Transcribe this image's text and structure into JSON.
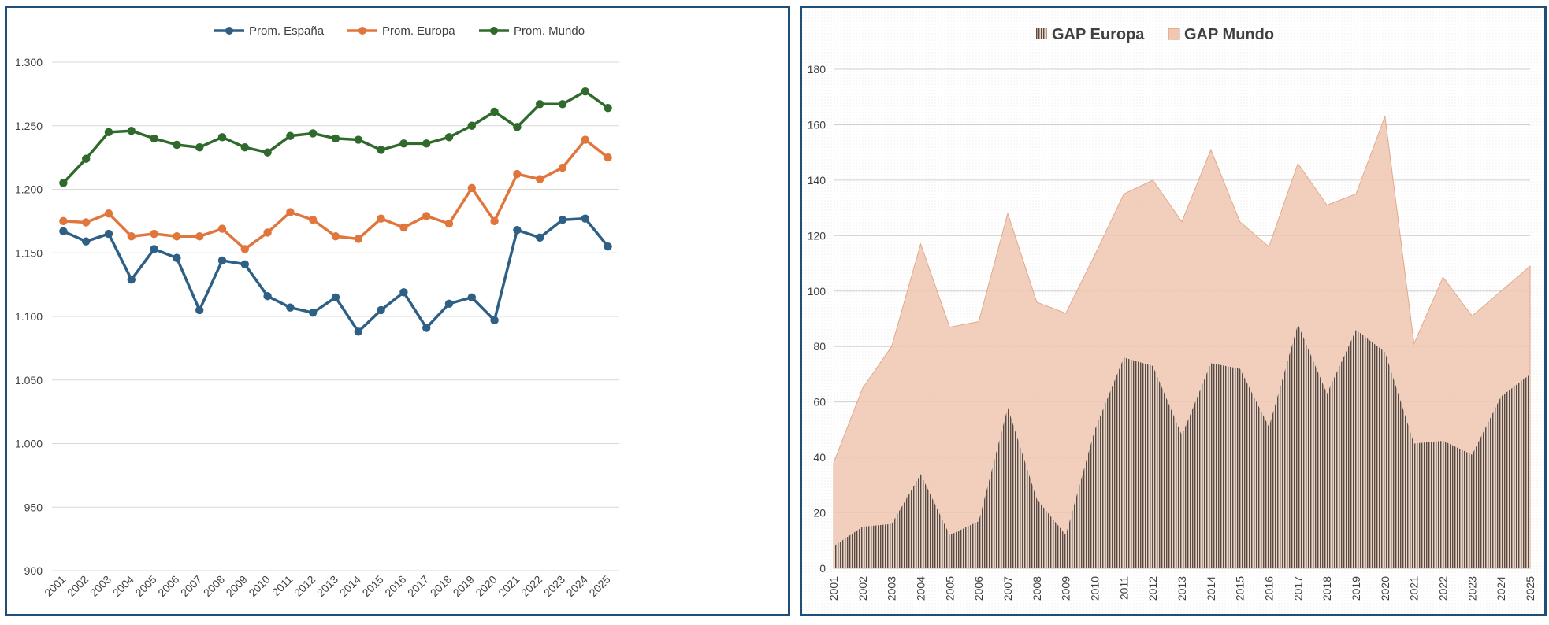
{
  "chart_data": [
    {
      "type": "line",
      "title": "",
      "xlabel": "",
      "ylabel": "",
      "categories": [
        "2001",
        "2002",
        "2003",
        "2004",
        "2005",
        "2006",
        "2007",
        "2008",
        "2009",
        "2010",
        "2011",
        "2012",
        "2013",
        "2014",
        "2015",
        "2016",
        "2017",
        "2018",
        "2019",
        "2020",
        "2021",
        "2022",
        "2023",
        "2024",
        "2025"
      ],
      "ylim": [
        900,
        1300
      ],
      "yticks": [
        900,
        950,
        1000,
        1050,
        1100,
        1150,
        1200,
        1250,
        1300
      ],
      "ytick_labels": [
        "900",
        "950",
        "1.000",
        "1.050",
        "1.100",
        "1.150",
        "1.200",
        "1.250",
        "1.300"
      ],
      "legend_position": "top",
      "grid": true,
      "series": [
        {
          "name": "Prom. España",
          "color": "#2e5f85",
          "values": [
            1167,
            1159,
            1165,
            1129,
            1153,
            1146,
            1105,
            1144,
            1141,
            1116,
            1107,
            1103,
            1115,
            1088,
            1105,
            1119,
            1091,
            1110,
            1115,
            1097,
            1168,
            1162,
            1176,
            1177,
            1155
          ]
        },
        {
          "name": "Prom. Europa",
          "color": "#e0763c",
          "values": [
            1175,
            1174,
            1181,
            1163,
            1165,
            1163,
            1163,
            1169,
            1153,
            1166,
            1182,
            1176,
            1163,
            1161,
            1177,
            1170,
            1179,
            1173,
            1201,
            1175,
            1212,
            1208,
            1217,
            1239,
            1225
          ]
        },
        {
          "name": "Prom. Mundo",
          "color": "#2f6a2c",
          "values": [
            1205,
            1224,
            1245,
            1246,
            1240,
            1235,
            1233,
            1241,
            1233,
            1229,
            1242,
            1244,
            1240,
            1239,
            1231,
            1236,
            1236,
            1241,
            1250,
            1261,
            1249,
            1267,
            1267,
            1277,
            1264
          ]
        }
      ]
    },
    {
      "type": "area",
      "title": "",
      "xlabel": "",
      "ylabel": "",
      "categories": [
        "2001",
        "2002",
        "2003",
        "2004",
        "2005",
        "2006",
        "2007",
        "2008",
        "2009",
        "2010",
        "2011",
        "2012",
        "2013",
        "2014",
        "2015",
        "2016",
        "2017",
        "2018",
        "2019",
        "2020",
        "2021",
        "2022",
        "2023",
        "2024",
        "2025"
      ],
      "ylim": [
        0,
        180
      ],
      "yticks": [
        0,
        20,
        40,
        60,
        80,
        100,
        120,
        140,
        160,
        180
      ],
      "ytick_labels": [
        "0",
        "20",
        "40",
        "60",
        "80",
        "100",
        "120",
        "140",
        "160",
        "180"
      ],
      "legend_position": "top",
      "grid": true,
      "series": [
        {
          "name": "GAP Europa",
          "color": "#5a4a42",
          "pattern": "vertical-lines",
          "values": [
            8,
            15,
            16,
            34,
            12,
            17,
            58,
            25,
            12,
            50,
            76,
            73,
            48,
            74,
            72,
            51,
            88,
            63,
            86,
            78,
            45,
            46,
            41,
            62,
            70
          ]
        },
        {
          "name": "GAP Mundo",
          "color": "#f0c7b0",
          "values": [
            38,
            65,
            80,
            117,
            87,
            89,
            128,
            96,
            92,
            113,
            135,
            140,
            125,
            151,
            125,
            116,
            146,
            131,
            135,
            163,
            81,
            105,
            91,
            100,
            109
          ]
        }
      ]
    }
  ]
}
